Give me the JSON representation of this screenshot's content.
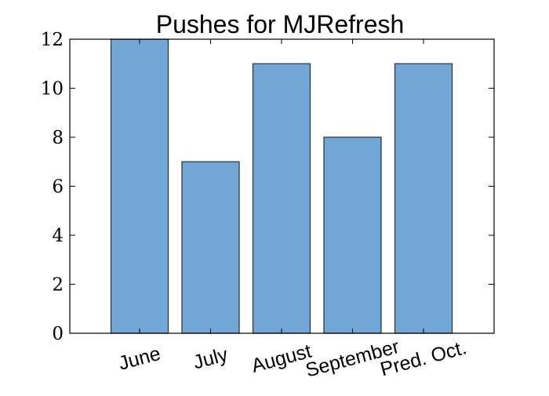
{
  "chart_data": {
    "type": "bar",
    "title": "Pushes for MJRefresh",
    "xlabel": "",
    "ylabel": "",
    "categories": [
      "June",
      "July",
      "August",
      "September",
      "Pred. Oct."
    ],
    "values": [
      12,
      7,
      11,
      8,
      11
    ],
    "ylim": [
      0,
      12
    ],
    "yticks": [
      0,
      2,
      4,
      6,
      8,
      10,
      12
    ],
    "grid": false,
    "legend": "none",
    "colors": {
      "bar_fill": "#72a6d4",
      "bar_edge": "#2b3a47"
    }
  }
}
